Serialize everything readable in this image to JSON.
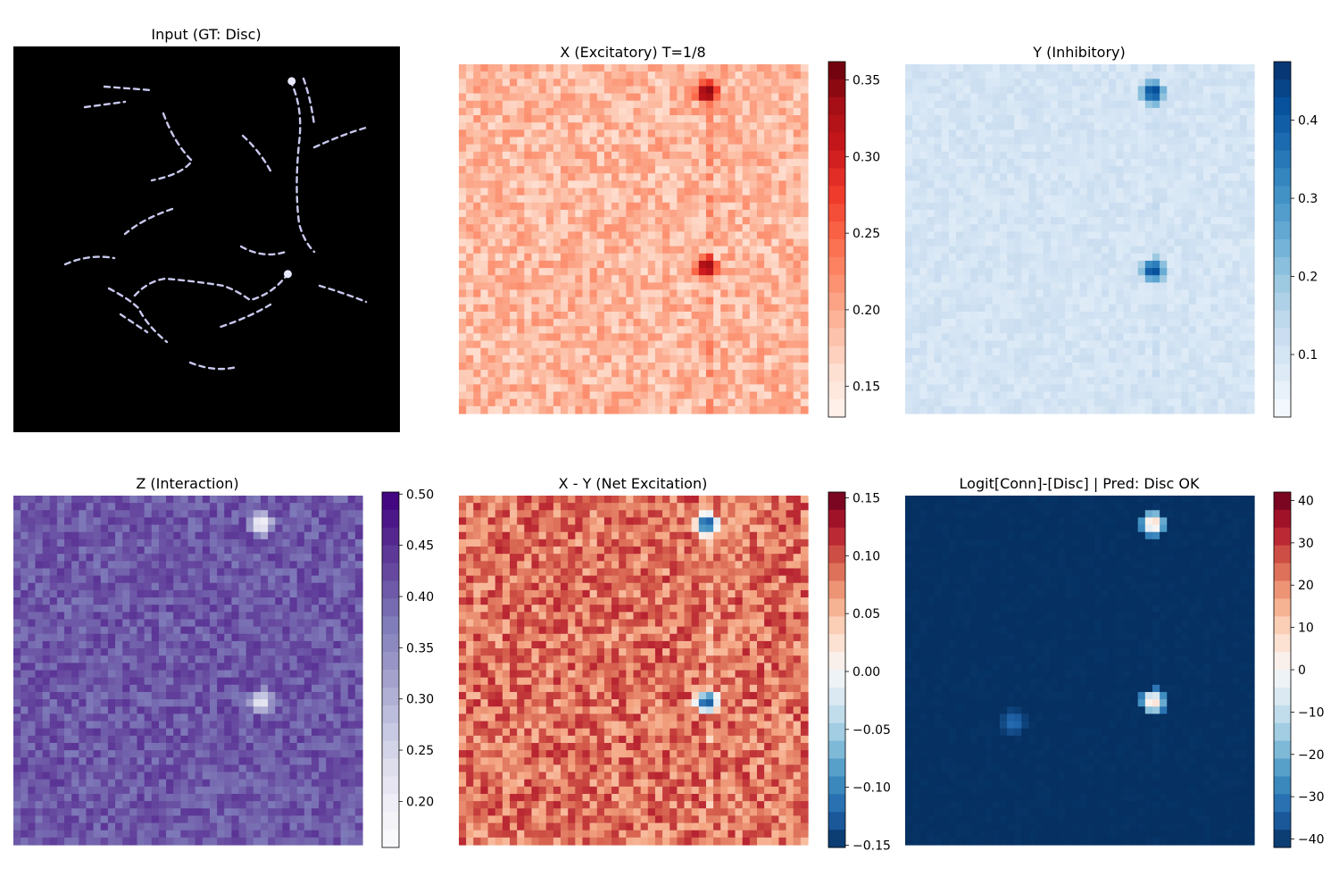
{
  "figure": {
    "background": "#ffffff"
  },
  "chart_data": [
    {
      "type": "heatmap",
      "title": "Input (GT: Disc)",
      "colormap": "gray-lavender",
      "background_color": "#000000",
      "stroke_color": "#c8c8ee",
      "colorbar": null,
      "content": "dashed curved paths on black background",
      "blobs": [
        [
          0.72,
          0.09
        ],
        [
          0.71,
          0.59
        ]
      ]
    },
    {
      "type": "heatmap",
      "title": "X (Excitatory) T=1/8",
      "colormap": "Reds",
      "colorbar": {
        "min": 0.13,
        "max": 0.362,
        "ticks": [
          0.15,
          0.2,
          0.25,
          0.3,
          0.35
        ],
        "tick_labels": [
          "0.15",
          "0.20",
          "0.25",
          "0.30",
          "0.35"
        ]
      },
      "baseline": 0.19,
      "noise": 0.03,
      "blobs": [
        {
          "x": 0.71,
          "y": 0.08,
          "value": 0.36,
          "sign": 1
        },
        {
          "x": 0.71,
          "y": 0.58,
          "value": 0.35,
          "sign": 1
        }
      ],
      "faint_line_x": 0.71
    },
    {
      "type": "heatmap",
      "title": "Y (Inhibitory)",
      "colormap": "Blues",
      "colorbar": {
        "min": 0.02,
        "max": 0.475,
        "ticks": [
          0.1,
          0.2,
          0.3,
          0.4
        ],
        "tick_labels": [
          "0.1",
          "0.2",
          "0.3",
          "0.4"
        ]
      },
      "baseline": 0.1,
      "noise": 0.025,
      "blobs": [
        {
          "x": 0.71,
          "y": 0.08,
          "value": 0.46,
          "sign": 1
        },
        {
          "x": 0.71,
          "y": 0.59,
          "value": 0.45,
          "sign": 1
        }
      ],
      "faint_line_x": 0.71
    },
    {
      "type": "heatmap",
      "title": "Z (Interaction)",
      "colormap": "Purples",
      "colorbar": {
        "min": 0.155,
        "max": 0.502,
        "ticks": [
          0.2,
          0.25,
          0.3,
          0.35,
          0.4,
          0.45,
          0.5
        ],
        "tick_labels": [
          "0.20",
          "0.25",
          "0.30",
          "0.35",
          "0.40",
          "0.45",
          "0.50"
        ]
      },
      "baseline": 0.41,
      "noise": 0.035,
      "blobs": [
        {
          "x": 0.71,
          "y": 0.08,
          "value": 0.17,
          "sign": -1
        },
        {
          "x": 0.71,
          "y": 0.59,
          "value": 0.2,
          "sign": -1
        }
      ],
      "faint_line_x": null
    },
    {
      "type": "heatmap",
      "title": "X - Y (Net Excitation)",
      "colormap": "RdBu_r",
      "colorbar": {
        "min": -0.152,
        "max": 0.155,
        "ticks": [
          -0.15,
          -0.1,
          -0.05,
          0.0,
          0.05,
          0.1,
          0.15
        ],
        "tick_labels": [
          "−0.15",
          "−0.10",
          "−0.05",
          "0.00",
          "0.05",
          "0.10",
          "0.15"
        ]
      },
      "baseline": 0.085,
      "noise": 0.035,
      "blobs": [
        {
          "x": 0.71,
          "y": 0.08,
          "value": -0.15,
          "sign": -1
        },
        {
          "x": 0.71,
          "y": 0.59,
          "value": -0.14,
          "sign": -1
        }
      ],
      "faint_line_x": 0.71
    },
    {
      "type": "heatmap",
      "title": "Logit[Conn]-[Disc] | Pred: Disc OK",
      "colormap": "RdBu_r",
      "colorbar": {
        "min": -42,
        "max": 42,
        "ticks": [
          -40,
          -30,
          -20,
          -10,
          0,
          10,
          20,
          30,
          40
        ],
        "tick_labels": [
          "−40",
          "−30",
          "−20",
          "−10",
          "0",
          "10",
          "20",
          "30",
          "40"
        ]
      },
      "baseline": -42,
      "noise": 0.6,
      "blobs": [
        {
          "x": 0.71,
          "y": 0.08,
          "value": 12,
          "sign": 1
        },
        {
          "x": 0.71,
          "y": 0.59,
          "value": 10,
          "sign": 1
        },
        {
          "x": 0.31,
          "y": 0.65,
          "value": -32,
          "sign": 1
        }
      ],
      "faint_line_x": 0.71
    }
  ]
}
